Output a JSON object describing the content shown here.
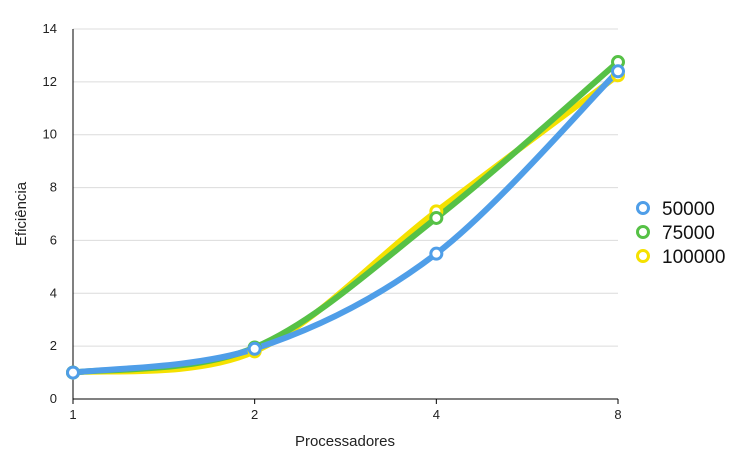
{
  "chart_data": {
    "type": "line",
    "title": "",
    "xlabel": "Processadores",
    "ylabel": "Eficiência",
    "categories": [
      "1",
      "2",
      "4",
      "8"
    ],
    "ylim": [
      0,
      14
    ],
    "yticks": [
      "0",
      "2",
      "4",
      "6",
      "8",
      "10",
      "12",
      "14"
    ],
    "grid": "horizontal",
    "legend_position": "right",
    "series": [
      {
        "name": "50000",
        "color": "#4f9ee8",
        "values": [
          1.0,
          1.9,
          5.5,
          12.4
        ]
      },
      {
        "name": "75000",
        "color": "#56c146",
        "values": [
          1.0,
          1.95,
          6.85,
          12.75
        ]
      },
      {
        "name": "100000",
        "color": "#f5e100",
        "values": [
          1.0,
          1.8,
          7.1,
          12.25
        ]
      }
    ],
    "draw_order": [
      2,
      1,
      0
    ]
  }
}
